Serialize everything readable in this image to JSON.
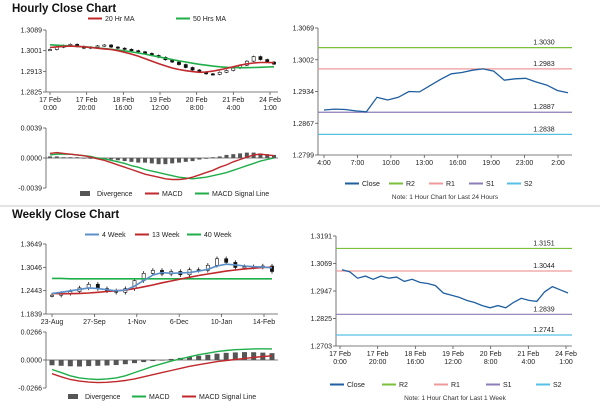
{
  "hourly": {
    "title": "Hourly Close Chart",
    "note": "Note: 1 Hour Chart for Last 24 Hours"
  },
  "weekly": {
    "title": "Weekly Close Chart",
    "note": "Note: 1 Hour Chart for Last 1 Week"
  },
  "colors": {
    "close": "#1f5fa0",
    "ma_short": "#c0282c",
    "ma_long": "#1fae4a",
    "macd": "#c0282c",
    "signal": "#1fae4a",
    "divergence": "#555555",
    "r2": "#7bbf3a",
    "r1": "#ee9a9a",
    "s1": "#8d7cb6",
    "s2": "#57c0e6",
    "week4": "#5b8fc9"
  },
  "chart_data": [
    {
      "id": "hourly-price",
      "type": "line",
      "xlabels": [
        "17 Feb\n0:00",
        "17 Feb\n20:00",
        "18 Feb\n16:00",
        "19 Feb\n12:00",
        "20 Feb\n8:00",
        "21 Feb\n4:00",
        "24 Feb\n1:00"
      ],
      "yticks": [
        "1.3089",
        "1.3001",
        "1.2913",
        "1.2825"
      ],
      "ylim": [
        1.2825,
        1.3089
      ],
      "legend": [
        "20 Hr MA",
        "50 Hrs MA"
      ],
      "series": [
        {
          "name": "",
          "kind": "candles",
          "values": [
            1.3003,
            1.3013,
            1.3021,
            1.3026,
            1.3017,
            1.3009,
            1.3014,
            1.3019,
            1.3023,
            1.3014,
            1.3009,
            1.3004,
            1.2998,
            1.2993,
            1.2986,
            1.2977,
            1.2969,
            1.2958,
            1.2948,
            1.2937,
            1.2924,
            1.2913,
            1.2904,
            1.2896,
            1.2894,
            1.2903,
            1.2911,
            1.2921,
            1.2934,
            1.2952,
            1.2972,
            1.2959,
            1.2948,
            1.2939
          ]
        },
        {
          "name": "20 Hr MA",
          "values": [
            1.3012,
            1.3015,
            1.3017,
            1.3018,
            1.3017,
            1.3015,
            1.3012,
            1.3009,
            1.3006,
            1.3003,
            1.2998,
            1.2991,
            1.2983,
            1.2974,
            1.2963,
            1.2952,
            1.2941,
            1.2931,
            1.2922,
            1.2915,
            1.291,
            1.2906,
            1.2903,
            1.2904,
            1.2908,
            1.2914,
            1.292,
            1.2927,
            1.2934,
            1.294,
            1.2944,
            1.2946,
            1.2946,
            1.2945
          ]
        },
        {
          "name": "50 Hrs MA",
          "values": [
            1.3024,
            1.3022,
            1.3021,
            1.3019,
            1.3017,
            1.3015,
            1.3013,
            1.301,
            1.3007,
            1.3004,
            1.3001,
            1.2997,
            1.2993,
            1.2988,
            1.2983,
            1.2977,
            1.2971,
            1.2965,
            1.2959,
            1.2953,
            1.2948,
            1.2943,
            1.2938,
            1.2934,
            1.293,
            1.2927,
            1.2925,
            1.2924,
            1.2923,
            1.2923,
            1.2924,
            1.2925,
            1.2926,
            1.2927
          ]
        }
      ]
    },
    {
      "id": "hourly-macd",
      "type": "bar",
      "yticks": [
        "0.0039",
        "0.0000",
        "-0.0039"
      ],
      "ylim": [
        -0.0039,
        0.0039
      ],
      "legend": [
        "Divergence",
        "MACD",
        "MACD Signal Line"
      ],
      "series": [
        {
          "name": "Divergence",
          "values": [
            0.0002,
            0.0002,
            0.0001,
            0.0001,
            0.0001,
            0.0,
            -0.0001,
            -0.0001,
            -0.0002,
            -0.0002,
            -0.0003,
            -0.0004,
            -0.0005,
            -0.0006,
            -0.0006,
            -0.0007,
            -0.0008,
            -0.0008,
            -0.0007,
            -0.0006,
            -0.0005,
            -0.0004,
            -0.0002,
            -0.0001,
            0.0001,
            0.0002,
            0.0004,
            0.0005,
            0.0006,
            0.0007,
            0.0007,
            0.0006,
            0.0005,
            0.0004
          ]
        },
        {
          "name": "MACD",
          "values": [
            0.0006,
            0.0007,
            0.0006,
            0.0005,
            0.0004,
            0.0003,
            0.0001,
            -0.0001,
            -0.0003,
            -0.0006,
            -0.0009,
            -0.0012,
            -0.0015,
            -0.0018,
            -0.0021,
            -0.0023,
            -0.0025,
            -0.0027,
            -0.0028,
            -0.0028,
            -0.0027,
            -0.0025,
            -0.0022,
            -0.0019,
            -0.0016,
            -0.0012,
            -0.0009,
            -0.0005,
            -0.0002,
            0.0001,
            0.0004,
            0.0005,
            0.0004,
            0.0003
          ]
        },
        {
          "name": "MACD Signal Line",
          "values": [
            0.0004,
            0.0005,
            0.0005,
            0.0005,
            0.0004,
            0.0003,
            0.0002,
            0.0,
            -0.0001,
            -0.0003,
            -0.0005,
            -0.0007,
            -0.001,
            -0.0012,
            -0.0015,
            -0.0017,
            -0.0019,
            -0.0021,
            -0.0023,
            -0.0025,
            -0.0026,
            -0.0027,
            -0.0026,
            -0.0025,
            -0.0023,
            -0.0021,
            -0.0019,
            -0.0016,
            -0.0013,
            -0.001,
            -0.0007,
            -0.0004,
            -0.0002,
            0.0
          ]
        }
      ]
    },
    {
      "id": "hourly-levels",
      "type": "line",
      "xlabels": [
        "4:00",
        "7:00",
        "10:00",
        "13:00",
        "16:00",
        "19:00",
        "23:00",
        "2:00"
      ],
      "yticks": [
        "1.3069",
        "1.3002",
        "1.2934",
        "1.2867",
        "1.2799"
      ],
      "ylim": [
        1.2799,
        1.3069
      ],
      "levels": [
        {
          "name": "R2",
          "value": 1.303,
          "label": "1.3030"
        },
        {
          "name": "R1",
          "value": 1.2983,
          "label": "1.2983"
        },
        {
          "name": "S1",
          "value": 1.2887,
          "label": "1.2887"
        },
        {
          "name": "S2",
          "value": 1.2838,
          "label": "1.2838"
        }
      ],
      "legend": [
        "Close",
        "R2",
        "R1",
        "S1",
        "S2"
      ],
      "series": [
        {
          "name": "Close",
          "values": [
            1.2892,
            1.2894,
            1.2893,
            1.289,
            1.2888,
            1.292,
            1.2914,
            1.292,
            1.2933,
            1.2932,
            1.2946,
            1.296,
            1.2972,
            1.2975,
            1.298,
            1.2983,
            1.2978,
            1.2958,
            1.2961,
            1.2962,
            1.2954,
            1.2947,
            1.2935,
            1.293
          ]
        }
      ]
    },
    {
      "id": "weekly-price",
      "type": "line",
      "xlabels": [
        "23-Aug",
        "27-Sep",
        "1-Nov",
        "6-Dec",
        "10-Jan",
        "14-Feb"
      ],
      "yticks": [
        "1.3649",
        "1.3046",
        "1.2443",
        "1.1839"
      ],
      "ylim": [
        1.1839,
        1.3649
      ],
      "legend": [
        "4 Week",
        "13 Week",
        "40 Week"
      ],
      "series": [
        {
          "name": "",
          "kind": "candles",
          "values": [
            1.23,
            1.235,
            1.24,
            1.25,
            1.26,
            1.248,
            1.242,
            1.238,
            1.248,
            1.27,
            1.29,
            1.298,
            1.288,
            1.295,
            1.286,
            1.3,
            1.298,
            1.312,
            1.33,
            1.32,
            1.306,
            1.308,
            1.307,
            1.31,
            1.295
          ]
        },
        {
          "name": "4 Week",
          "values": [
            1.235,
            1.238,
            1.242,
            1.246,
            1.25,
            1.248,
            1.245,
            1.242,
            1.244,
            1.255,
            1.27,
            1.285,
            1.292,
            1.29,
            1.291,
            1.292,
            1.296,
            1.301,
            1.31,
            1.315,
            1.313,
            1.31,
            1.308,
            1.307,
            1.305
          ]
        },
        {
          "name": "13 Week",
          "values": [
            1.235,
            1.234,
            1.234,
            1.235,
            1.236,
            1.238,
            1.24,
            1.242,
            1.244,
            1.248,
            1.253,
            1.258,
            1.264,
            1.269,
            1.274,
            1.279,
            1.284,
            1.288,
            1.292,
            1.296,
            1.299,
            1.302,
            1.304,
            1.306,
            1.307
          ]
        },
        {
          "name": "40 Week",
          "values": [
            1.276,
            1.276,
            1.275,
            1.275,
            1.275,
            1.275,
            1.275,
            1.275,
            1.275,
            1.275,
            1.275,
            1.275,
            1.275,
            1.275,
            1.275,
            1.275,
            1.275,
            1.275,
            1.275,
            1.275,
            1.275,
            1.275,
            1.275,
            1.275,
            1.275
          ]
        }
      ]
    },
    {
      "id": "weekly-macd",
      "type": "bar",
      "yticks": [
        "0.0266",
        "0.0000",
        "-0.0266"
      ],
      "ylim": [
        -0.0266,
        0.0266
      ],
      "legend": [
        "Divergence",
        "MACD",
        "MACD Signal Line"
      ],
      "series": [
        {
          "name": "Divergence",
          "values": [
            -0.005,
            -0.0055,
            -0.006,
            -0.0062,
            -0.0058,
            -0.0055,
            -0.0052,
            -0.0048,
            -0.004,
            -0.003,
            -0.002,
            -0.001,
            0.0,
            0.001,
            0.002,
            0.003,
            0.004,
            0.005,
            0.006,
            0.0068,
            0.0072,
            0.0075,
            0.0074,
            0.007,
            0.0065
          ]
        },
        {
          "name": "MACD",
          "values": [
            -0.009,
            -0.012,
            -0.015,
            -0.017,
            -0.018,
            -0.0185,
            -0.018,
            -0.017,
            -0.015,
            -0.012,
            -0.009,
            -0.006,
            -0.0035,
            -0.001,
            0.001,
            0.003,
            0.005,
            0.0065,
            0.008,
            0.009,
            0.0098,
            0.0102,
            0.0105,
            0.0106,
            0.0105
          ]
        },
        {
          "name": "MACD Signal Line",
          "values": [
            -0.013,
            -0.016,
            -0.0185,
            -0.02,
            -0.021,
            -0.0215,
            -0.0212,
            -0.0205,
            -0.0195,
            -0.018,
            -0.016,
            -0.014,
            -0.012,
            -0.01,
            -0.008,
            -0.006,
            -0.0045,
            -0.003,
            -0.0015,
            -0.0005,
            0.0005,
            0.0015,
            0.0025,
            0.0033,
            0.004
          ]
        }
      ]
    },
    {
      "id": "weekly-levels",
      "type": "line",
      "xlabels": [
        "17 Feb\n0:00",
        "17 Feb\n20:00",
        "18 Feb\n16:00",
        "19 Feb\n12:00",
        "20 Feb\n8:00",
        "21 Feb\n4:00",
        "24 Feb\n1:00"
      ],
      "yticks": [
        "1.3191",
        "1.3069",
        "1.2947",
        "1.2825",
        "1.2703"
      ],
      "ylim": [
        1.2703,
        1.3191
      ],
      "levels": [
        {
          "name": "R2",
          "value": 1.3151,
          "label": "1.3151"
        },
        {
          "name": "R1",
          "value": 1.3044,
          "label": "1.3044"
        },
        {
          "name": "S1",
          "value": 1.2839,
          "label": "1.2839"
        },
        {
          "name": "S2",
          "value": 1.2741,
          "label": "1.2741"
        }
      ],
      "legend": [
        "Close",
        "R2",
        "R1",
        "S1",
        "S2"
      ],
      "series": [
        {
          "name": "Close",
          "values": [
            1.305,
            1.304,
            1.301,
            1.302,
            1.3005,
            1.302,
            1.301,
            1.3015,
            1.2995,
            1.3005,
            1.299,
            1.2985,
            1.2975,
            1.294,
            1.293,
            1.292,
            1.2905,
            1.2895,
            1.288,
            1.287,
            1.288,
            1.287,
            1.2895,
            1.2915,
            1.2905,
            1.29,
            1.2945,
            1.297,
            1.2955,
            1.294
          ]
        }
      ]
    }
  ]
}
